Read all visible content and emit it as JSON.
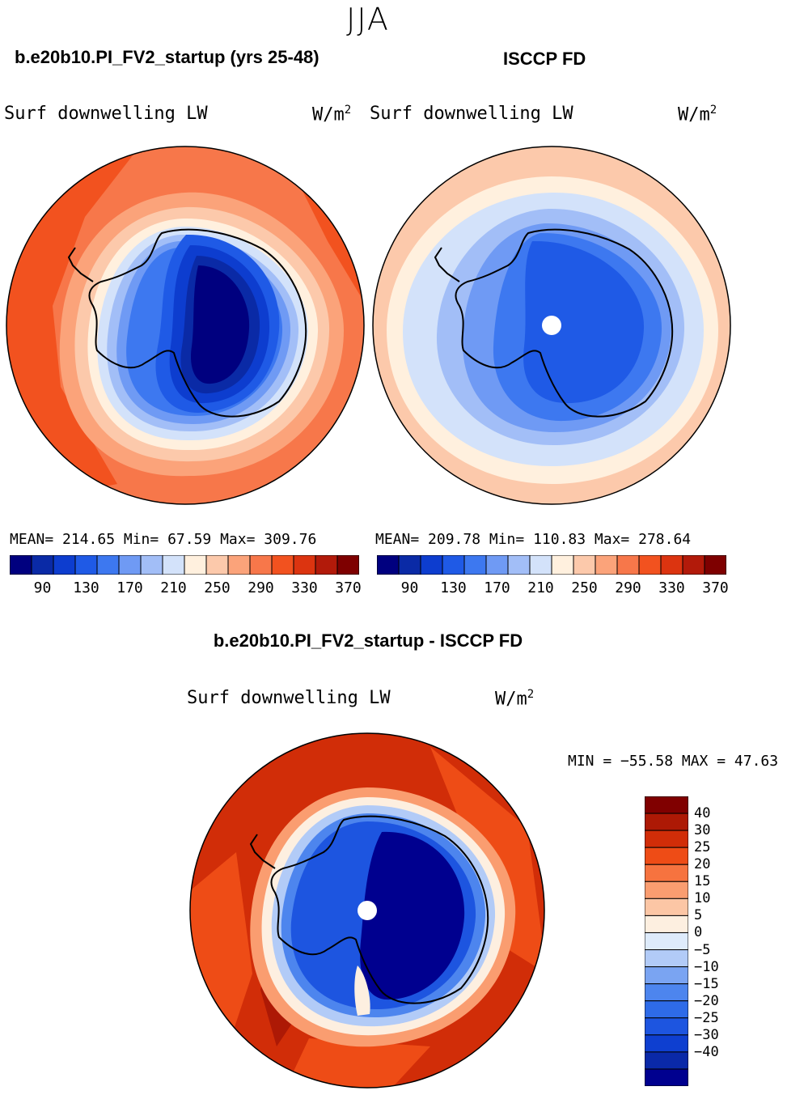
{
  "figure": {
    "season": "JJA",
    "panels": [
      {
        "title": "b.e20b10.PI_FV2_startup (yrs 25-48)",
        "variable": "Surf downwelling LW",
        "units": "W/m",
        "units_sup": "2",
        "stats": "MEAN= 214.65   Min=  67.59   Max= 309.76"
      },
      {
        "title": "ISCCP FD",
        "variable": "Surf downwelling LW",
        "units": "W/m",
        "units_sup": "2",
        "stats": "MEAN= 209.78   Min= 110.83   Max= 278.64"
      }
    ],
    "diff_panel": {
      "title": "b.e20b10.PI_FV2_startup - ISCCP FD",
      "variable": "Surf downwelling LW",
      "units": "W/m",
      "units_sup": "2",
      "stats": "MIN = −55.58 MAX =  47.63"
    },
    "colorbar_abs": {
      "colors": [
        "#00007f",
        "#0a2aa6",
        "#0d3dcf",
        "#1f5ae6",
        "#3d78f0",
        "#6f9af4",
        "#a2bef7",
        "#d3e2fa",
        "#fff0de",
        "#fcc9ab",
        "#fba37a",
        "#f7774a",
        "#f2521f",
        "#dc3410",
        "#b21a0a",
        "#7e0000"
      ],
      "tick_labels": [
        "90",
        "130",
        "170",
        "210",
        "250",
        "290",
        "330",
        "370"
      ]
    },
    "colorbar_diff": {
      "colors": [
        "#00008f",
        "#0a29a8",
        "#0e3fd0",
        "#1d55e0",
        "#2e6be8",
        "#4d85ee",
        "#7aa4f2",
        "#b2cbf7",
        "#deebfb",
        "#fdefe0",
        "#fcc6a5",
        "#fa9d70",
        "#f6733f",
        "#ee4c16",
        "#d12d08",
        "#ad1905",
        "#800000"
      ],
      "tick_labels": [
        "40",
        "30",
        "25",
        "20",
        "15",
        "10",
        "5",
        "0",
        "−5",
        "−10",
        "−15",
        "−20",
        "−25",
        "−30",
        "−40"
      ]
    },
    "colors": {
      "land_outline": "#000000",
      "missing_data": "#ffffff"
    }
  }
}
